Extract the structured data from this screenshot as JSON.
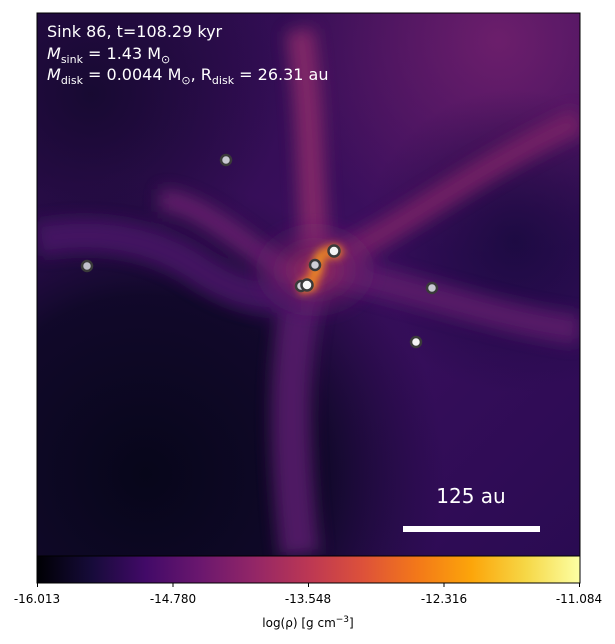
{
  "annotation": {
    "line1": "Sink 86, t=108.29 kyr",
    "line2_prefix": "M",
    "line2_sub": "sink",
    "line2_value": " = 1.43 M",
    "line2_unit_sub": "⊙",
    "line3_prefix": "M",
    "line3_sub": "disk",
    "line3_value": " = 0.0044 M",
    "line3_unit_sub": "⊙",
    "line3_sep": ", R",
    "line3_sub2": "disk",
    "line3_value2": " = 26.31 au"
  },
  "scale_bar": {
    "label": "125 au"
  },
  "colorbar": {
    "colormap": "inferno",
    "ticks": [
      "-16.013",
      "-14.780",
      "-13.548",
      "-12.316",
      "-11.084"
    ],
    "label_prefix": "log(ρ) [g cm",
    "label_sup": "−3",
    "label_suffix": "]"
  },
  "sinks": [
    {
      "name": "sink-1"
    },
    {
      "name": "sink-2"
    },
    {
      "name": "sink-3"
    },
    {
      "name": "sink-4"
    },
    {
      "name": "sink-5"
    },
    {
      "name": "sink-6"
    },
    {
      "name": "sink-7"
    },
    {
      "name": "sink-8"
    }
  ],
  "colors": {
    "background_dark": "#0b0720",
    "mid_purple": "#5a1a6e",
    "filament": "#8a2a6a",
    "disk_core": "#f7a21a",
    "sink_face": "#d8d8e0",
    "sink_edge": "#3a3a3a"
  }
}
